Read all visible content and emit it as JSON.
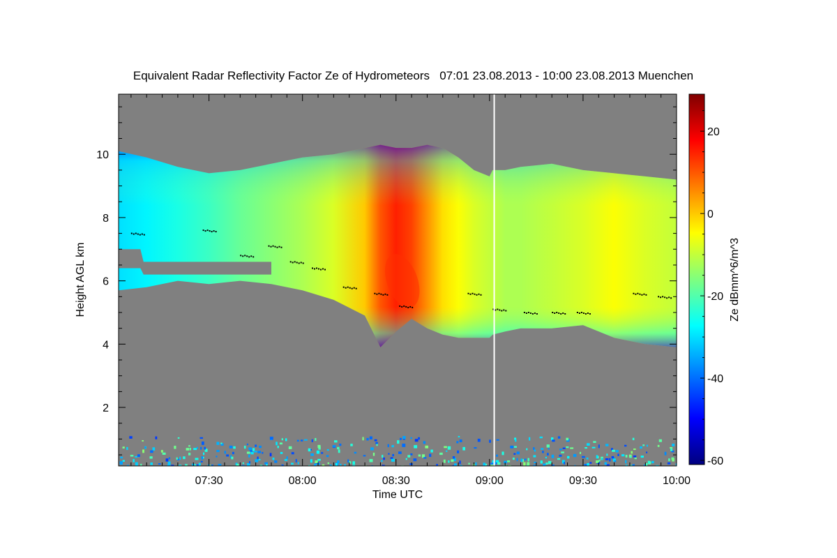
{
  "chart_data": {
    "type": "heatmap",
    "title": "Equivalent Radar Reflectivity Factor Ze of Hydrometeors   07:01 23.08.2013 - 10:00 23.08.2013 Muenchen",
    "xlabel": "Time UTC",
    "ylabel": "Height AGL km",
    "colorbar_label": "Ze dBmm^6/m^3",
    "x_range_minutes_utc": [
      421,
      600
    ],
    "x_ticks": [
      {
        "minutes": 450,
        "label": "07:30"
      },
      {
        "minutes": 480,
        "label": "08:00"
      },
      {
        "minutes": 510,
        "label": "08:30"
      },
      {
        "minutes": 540,
        "label": "09:00"
      },
      {
        "minutes": 570,
        "label": "09:30"
      },
      {
        "minutes": 600,
        "label": "10:00"
      }
    ],
    "y_range_km": [
      0.15,
      11.9
    ],
    "y_ticks": [
      {
        "value": 2,
        "label": "2"
      },
      {
        "value": 4,
        "label": "4"
      },
      {
        "value": 6,
        "label": "6"
      },
      {
        "value": 8,
        "label": "8"
      },
      {
        "value": 10,
        "label": "10"
      }
    ],
    "colorbar_range": [
      -61,
      29
    ],
    "colorbar_ticks": [
      {
        "value": 20,
        "label": "20"
      },
      {
        "value": 0,
        "label": "0"
      },
      {
        "value": -20,
        "label": "-20"
      },
      {
        "value": -40,
        "label": "-40"
      },
      {
        "value": -60,
        "label": "-60"
      }
    ],
    "colormap": [
      "#00007f",
      "#0000ff",
      "#007fff",
      "#00ffff",
      "#7fff7f",
      "#ffff00",
      "#ff7f00",
      "#ff0000",
      "#7f0000"
    ],
    "background_color": "#808080",
    "data_gap_line_minutes": 541.5,
    "cloud_layer": {
      "time_minutes": [
        421,
        430,
        440,
        450,
        460,
        470,
        480,
        490,
        500,
        505,
        510,
        515,
        520,
        525,
        530,
        535,
        540,
        541,
        545,
        550,
        560,
        570,
        580,
        590,
        600
      ],
      "top_km": [
        10.1,
        9.9,
        9.6,
        9.4,
        9.5,
        9.7,
        9.9,
        10.0,
        10.2,
        10.3,
        10.2,
        10.2,
        10.3,
        10.2,
        9.9,
        9.5,
        9.3,
        9.5,
        9.5,
        9.6,
        9.7,
        9.5,
        9.4,
        9.3,
        9.2
      ],
      "base_km": [
        5.7,
        5.8,
        6.0,
        5.9,
        6.0,
        5.9,
        5.7,
        5.4,
        4.9,
        3.9,
        4.4,
        4.8,
        4.5,
        4.3,
        4.2,
        4.2,
        4.2,
        4.3,
        4.4,
        4.5,
        4.5,
        4.6,
        4.2,
        4.0,
        3.9
      ],
      "peak_ze_dbz": [
        -30,
        -28,
        -25,
        -22,
        -18,
        -15,
        -12,
        -8,
        0,
        10,
        15,
        12,
        5,
        -2,
        -5,
        -8,
        -10,
        -10,
        -12,
        -12,
        -10,
        -8,
        -5,
        -8,
        -10
      ]
    },
    "lower_clear_gap_km": {
      "time_minutes": [
        421,
        428,
        429,
        470
      ],
      "top_km": [
        7.0,
        7.0,
        6.6,
        6.6
      ],
      "base_km": [
        6.4,
        6.4,
        6.2,
        6.2
      ]
    },
    "near_surface_clutter_km": [
      0.15,
      1.1
    ],
    "melting_layer_markers": [
      {
        "time_minutes": 427,
        "height_km": 7.5
      },
      {
        "time_minutes": 450,
        "height_km": 7.6
      },
      {
        "time_minutes": 462,
        "height_km": 6.8
      },
      {
        "time_minutes": 471,
        "height_km": 7.1
      },
      {
        "time_minutes": 478,
        "height_km": 6.6
      },
      {
        "time_minutes": 485,
        "height_km": 6.4
      },
      {
        "time_minutes": 495,
        "height_km": 5.8
      },
      {
        "time_minutes": 505,
        "height_km": 5.6
      },
      {
        "time_minutes": 513,
        "height_km": 5.2
      },
      {
        "time_minutes": 535,
        "height_km": 5.6
      },
      {
        "time_minutes": 543,
        "height_km": 5.1
      },
      {
        "time_minutes": 553,
        "height_km": 5.0
      },
      {
        "time_minutes": 562,
        "height_km": 5.0
      },
      {
        "time_minutes": 570,
        "height_km": 5.0
      },
      {
        "time_minutes": 588,
        "height_km": 5.6
      },
      {
        "time_minutes": 596,
        "height_km": 5.5
      }
    ]
  }
}
